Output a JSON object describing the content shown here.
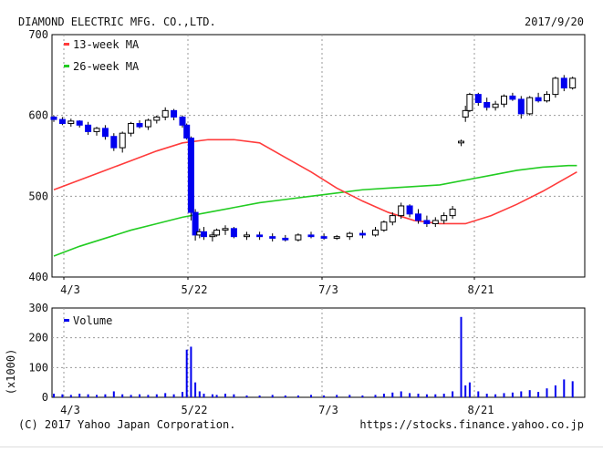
{
  "header": {
    "company": "DIAMOND ELECTRIC MFG. CO.,LTD.",
    "date": "2017/9/20"
  },
  "footer": {
    "copyright": "(C) 2017 Yahoo Japan Corporation.",
    "url": "https://stocks.finance.yahoo.co.jp"
  },
  "colors": {
    "ma13": "#ff3b3b",
    "ma26": "#22cc22",
    "up_candle": "#0000ee",
    "down_candle": "#000000",
    "volume": "#0000ee",
    "grid": "#999999"
  },
  "chart_data": [
    {
      "type": "candlestick",
      "ylim": [
        400,
        700
      ],
      "yticks": [
        "700",
        "600",
        "500",
        "400"
      ],
      "xticks": [
        "4/3",
        "5/22",
        "7/3",
        "8/21"
      ],
      "legend": [
        "13-week MA",
        "26-week MA"
      ],
      "grid": true,
      "legend_position": "top-left",
      "candles": [
        [
          0,
          598,
          600,
          592,
          595
        ],
        [
          2,
          595,
          598,
          588,
          590
        ],
        [
          4,
          590,
          596,
          586,
          593
        ],
        [
          6,
          593,
          594,
          585,
          588
        ],
        [
          8,
          588,
          592,
          576,
          580
        ],
        [
          10,
          580,
          586,
          575,
          584
        ],
        [
          12,
          584,
          588,
          570,
          574
        ],
        [
          14,
          574,
          578,
          556,
          560
        ],
        [
          16,
          560,
          580,
          554,
          578
        ],
        [
          18,
          578,
          592,
          574,
          590
        ],
        [
          20,
          590,
          594,
          584,
          586
        ],
        [
          22,
          586,
          596,
          582,
          594
        ],
        [
          24,
          594,
          600,
          590,
          598
        ],
        [
          26,
          598,
          610,
          594,
          606
        ],
        [
          28,
          606,
          608,
          594,
          598
        ],
        [
          30,
          598,
          600,
          585,
          588
        ],
        [
          31,
          588,
          590,
          570,
          572
        ],
        [
          32,
          572,
          574,
          470,
          480
        ],
        [
          33,
          480,
          484,
          445,
          452
        ],
        [
          34,
          452,
          460,
          448,
          456
        ],
        [
          35,
          456,
          462,
          446,
          450
        ],
        [
          37,
          450,
          456,
          444,
          452
        ],
        [
          38,
          452,
          460,
          450,
          458
        ],
        [
          40,
          458,
          464,
          452,
          460
        ],
        [
          42,
          460,
          462,
          448,
          450
        ],
        [
          45,
          450,
          456,
          446,
          452
        ],
        [
          48,
          452,
          456,
          446,
          450
        ],
        [
          51,
          450,
          454,
          444,
          448
        ],
        [
          54,
          448,
          452,
          444,
          446
        ],
        [
          57,
          446,
          454,
          444,
          452
        ],
        [
          60,
          452,
          456,
          448,
          450
        ],
        [
          63,
          450,
          454,
          446,
          448
        ],
        [
          66,
          448,
          452,
          446,
          450
        ],
        [
          69,
          450,
          456,
          446,
          454
        ],
        [
          72,
          454,
          458,
          448,
          452
        ],
        [
          75,
          452,
          462,
          450,
          458
        ],
        [
          77,
          458,
          470,
          456,
          468
        ],
        [
          79,
          468,
          480,
          464,
          476
        ],
        [
          81,
          476,
          492,
          472,
          488
        ],
        [
          83,
          488,
          490,
          474,
          478
        ],
        [
          85,
          478,
          484,
          466,
          470
        ],
        [
          87,
          470,
          476,
          462,
          466
        ],
        [
          89,
          466,
          474,
          462,
          470
        ],
        [
          91,
          470,
          480,
          466,
          476
        ],
        [
          93,
          476,
          488,
          472,
          484
        ],
        [
          95,
          566,
          570,
          562,
          568
        ],
        [
          96,
          598,
          612,
          592,
          606
        ],
        [
          97,
          606,
          628,
          604,
          626
        ],
        [
          99,
          626,
          628,
          612,
          616
        ],
        [
          101,
          616,
          622,
          606,
          610
        ],
        [
          103,
          610,
          618,
          606,
          614
        ],
        [
          105,
          614,
          626,
          610,
          624
        ],
        [
          107,
          624,
          628,
          618,
          620
        ],
        [
          109,
          620,
          624,
          596,
          602
        ],
        [
          111,
          602,
          624,
          600,
          622
        ],
        [
          113,
          622,
          628,
          616,
          618
        ],
        [
          115,
          618,
          630,
          616,
          626
        ],
        [
          117,
          626,
          648,
          622,
          646
        ],
        [
          119,
          646,
          650,
          630,
          634
        ],
        [
          121,
          634,
          648,
          632,
          646
        ]
      ],
      "ma13": [
        [
          0,
          508
        ],
        [
          6,
          520
        ],
        [
          12,
          532
        ],
        [
          18,
          544
        ],
        [
          24,
          556
        ],
        [
          30,
          566
        ],
        [
          36,
          570
        ],
        [
          42,
          570
        ],
        [
          48,
          566
        ],
        [
          54,
          548
        ],
        [
          60,
          530
        ],
        [
          66,
          510
        ],
        [
          72,
          494
        ],
        [
          78,
          480
        ],
        [
          84,
          470
        ],
        [
          90,
          466
        ],
        [
          96,
          466
        ],
        [
          102,
          476
        ],
        [
          108,
          490
        ],
        [
          114,
          506
        ],
        [
          120,
          524
        ],
        [
          122,
          530
        ]
      ],
      "ma26": [
        [
          0,
          426
        ],
        [
          6,
          438
        ],
        [
          12,
          448
        ],
        [
          18,
          458
        ],
        [
          24,
          466
        ],
        [
          30,
          474
        ],
        [
          36,
          480
        ],
        [
          42,
          486
        ],
        [
          48,
          492
        ],
        [
          54,
          496
        ],
        [
          60,
          500
        ],
        [
          66,
          504
        ],
        [
          72,
          508
        ],
        [
          78,
          510
        ],
        [
          84,
          512
        ],
        [
          90,
          514
        ],
        [
          96,
          520
        ],
        [
          102,
          526
        ],
        [
          108,
          532
        ],
        [
          114,
          536
        ],
        [
          120,
          538
        ],
        [
          122,
          538
        ]
      ]
    },
    {
      "type": "bar",
      "ylabel": "(x1000)",
      "ylim": [
        0,
        300
      ],
      "yticks": [
        "300",
        "200",
        "100",
        "0"
      ],
      "xticks": [
        "4/3",
        "5/22",
        "7/3",
        "8/21"
      ],
      "legend": [
        "Volume"
      ],
      "grid": true,
      "legend_position": "top-left",
      "values": [
        [
          0,
          12
        ],
        [
          2,
          10
        ],
        [
          4,
          8
        ],
        [
          6,
          12
        ],
        [
          8,
          10
        ],
        [
          10,
          8
        ],
        [
          12,
          10
        ],
        [
          14,
          20
        ],
        [
          16,
          10
        ],
        [
          18,
          8
        ],
        [
          20,
          10
        ],
        [
          22,
          8
        ],
        [
          24,
          10
        ],
        [
          26,
          14
        ],
        [
          28,
          10
        ],
        [
          30,
          18
        ],
        [
          31,
          160
        ],
        [
          32,
          170
        ],
        [
          33,
          50
        ],
        [
          34,
          20
        ],
        [
          35,
          12
        ],
        [
          37,
          10
        ],
        [
          38,
          8
        ],
        [
          40,
          12
        ],
        [
          42,
          10
        ],
        [
          45,
          6
        ],
        [
          48,
          6
        ],
        [
          51,
          8
        ],
        [
          54,
          6
        ],
        [
          57,
          6
        ],
        [
          60,
          8
        ],
        [
          63,
          6
        ],
        [
          66,
          8
        ],
        [
          69,
          8
        ],
        [
          72,
          6
        ],
        [
          75,
          8
        ],
        [
          77,
          12
        ],
        [
          79,
          16
        ],
        [
          81,
          20
        ],
        [
          83,
          14
        ],
        [
          85,
          12
        ],
        [
          87,
          10
        ],
        [
          89,
          10
        ],
        [
          91,
          12
        ],
        [
          93,
          20
        ],
        [
          95,
          270
        ],
        [
          96,
          40
        ],
        [
          97,
          50
        ],
        [
          99,
          20
        ],
        [
          101,
          12
        ],
        [
          103,
          10
        ],
        [
          105,
          14
        ],
        [
          107,
          16
        ],
        [
          109,
          20
        ],
        [
          111,
          24
        ],
        [
          113,
          18
        ],
        [
          115,
          30
        ],
        [
          117,
          40
        ],
        [
          119,
          60
        ],
        [
          121,
          54
        ]
      ]
    }
  ]
}
